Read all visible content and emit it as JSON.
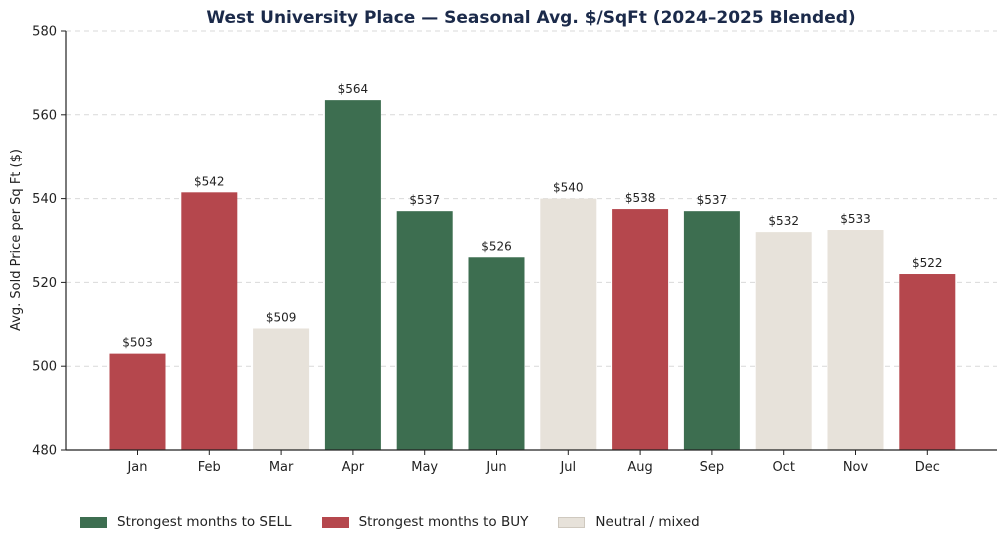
{
  "chart_data": {
    "type": "bar",
    "title": "West University Place — Seasonal Avg. $/SqFt (2024–2025 Blended)",
    "xlabel": "",
    "ylabel": "Avg. Sold Price per Sq Ft ($)",
    "ylim": [
      480,
      580
    ],
    "yticks": [
      "480",
      "500",
      "520",
      "540",
      "560",
      "580"
    ],
    "grid": true,
    "legend_position": "bottom",
    "categories": [
      "Jan",
      "Feb",
      "Mar",
      "Apr",
      "May",
      "Jun",
      "Jul",
      "Aug",
      "Sep",
      "Oct",
      "Nov",
      "Dec"
    ],
    "values": [
      503,
      541.5,
      509,
      563.5,
      537,
      526,
      540,
      537.5,
      537,
      532,
      532.5,
      522
    ],
    "value_labels": [
      "$503",
      "$542",
      "$509",
      "$564",
      "$537",
      "$526",
      "$540",
      "$538",
      "$537",
      "$532",
      "$533",
      "$522"
    ],
    "bar_groups": [
      "buy",
      "buy",
      "neutral",
      "sell",
      "sell",
      "sell",
      "neutral",
      "buy",
      "sell",
      "neutral",
      "neutral",
      "buy"
    ],
    "colors": {
      "sell": "#3d6e50",
      "buy": "#b5474d",
      "neutral": "#e7e2da"
    },
    "legend": [
      {
        "key": "sell",
        "label": "Strongest months to SELL"
      },
      {
        "key": "buy",
        "label": "Strongest months to BUY"
      },
      {
        "key": "neutral",
        "label": "Neutral / mixed"
      }
    ]
  }
}
